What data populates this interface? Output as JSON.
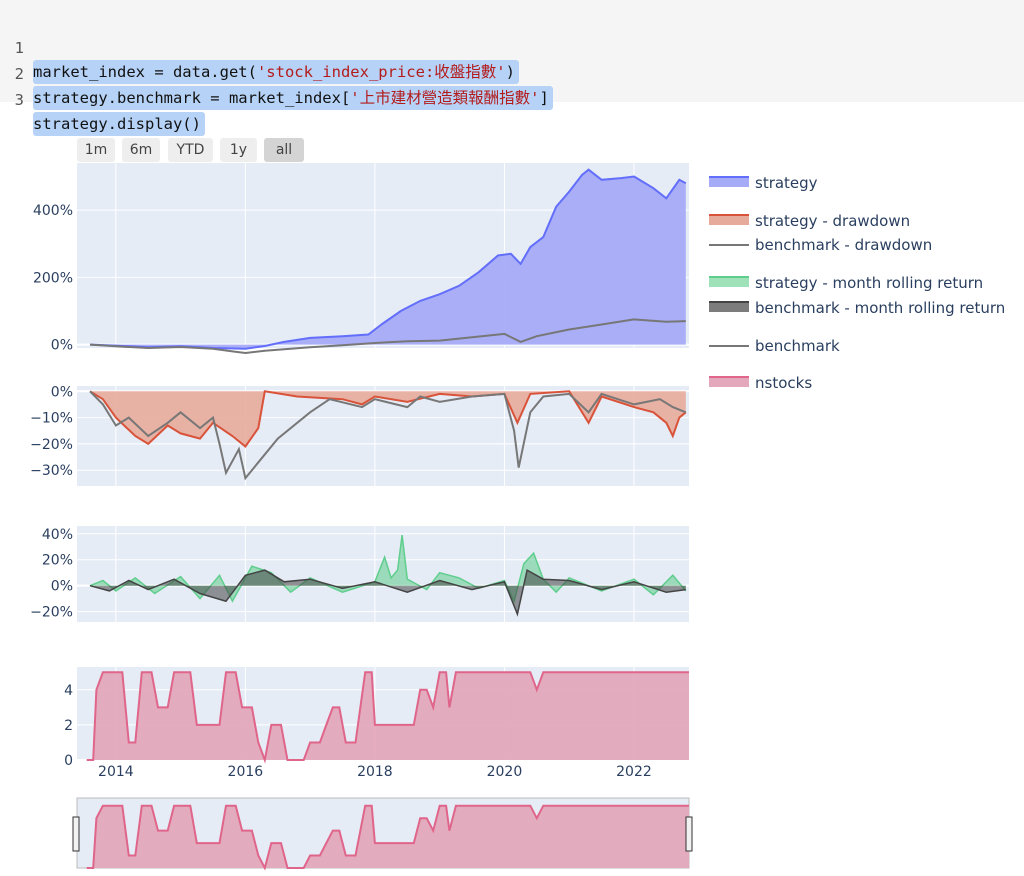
{
  "code": {
    "lines": [
      {
        "num": "1",
        "pre": "market_index = data.get(",
        "str": "'stock_index_price:收盤指數'",
        "post": ")"
      },
      {
        "num": "2",
        "pre": "strategy.benchmark = market_index[",
        "str": "'上市建材營造類報酬指數'",
        "post": "]"
      },
      {
        "num": "3",
        "pre": "strategy.display()",
        "str": "",
        "post": ""
      }
    ]
  },
  "range_selector": {
    "buttons": [
      "1m",
      "6m",
      "YTD",
      "1y",
      "all"
    ],
    "active": "all"
  },
  "colors": {
    "strategy": "#636efa",
    "strategy_fill": "#a5abf7",
    "drawdown": "#d9533a",
    "drawdown_fill": "#e7ab9b",
    "benchmark": "#777777",
    "rolling_strategy": "#5fce8c",
    "rolling_benchmark": "#444444",
    "nstocks": "#e0658a",
    "nstocks_fill": "#e3a8bb",
    "plot_bg": "#e5ecf6"
  },
  "chart_data": [
    {
      "type": "area",
      "panel": "returns",
      "ytick_labels": [
        "400%",
        "200%",
        "0%"
      ],
      "ylim": [
        -10,
        540
      ],
      "x_range": [
        2013.4,
        2022.85
      ],
      "series": [
        {
          "name": "strategy",
          "points": [
            [
              2013.6,
              0
            ],
            [
              2014.0,
              -3
            ],
            [
              2014.5,
              -8
            ],
            [
              2015.0,
              -5
            ],
            [
              2015.5,
              -10
            ],
            [
              2016.0,
              -12
            ],
            [
              2016.3,
              -4
            ],
            [
              2016.6,
              8
            ],
            [
              2017.0,
              20
            ],
            [
              2017.5,
              25
            ],
            [
              2017.9,
              30
            ],
            [
              2018.1,
              60
            ],
            [
              2018.4,
              100
            ],
            [
              2018.7,
              130
            ],
            [
              2019.0,
              150
            ],
            [
              2019.3,
              175
            ],
            [
              2019.6,
              215
            ],
            [
              2019.9,
              265
            ],
            [
              2020.1,
              270
            ],
            [
              2020.25,
              240
            ],
            [
              2020.4,
              290
            ],
            [
              2020.6,
              320
            ],
            [
              2020.8,
              410
            ],
            [
              2021.0,
              455
            ],
            [
              2021.2,
              505
            ],
            [
              2021.3,
              520
            ],
            [
              2021.5,
              490
            ],
            [
              2021.8,
              495
            ],
            [
              2022.0,
              500
            ],
            [
              2022.3,
              465
            ],
            [
              2022.5,
              435
            ],
            [
              2022.7,
              490
            ],
            [
              2022.8,
              480
            ]
          ]
        },
        {
          "name": "benchmark",
          "points": [
            [
              2013.6,
              0
            ],
            [
              2014.0,
              -5
            ],
            [
              2014.5,
              -10
            ],
            [
              2015.0,
              -7
            ],
            [
              2015.5,
              -12
            ],
            [
              2015.8,
              -20
            ],
            [
              2016.0,
              -25
            ],
            [
              2016.3,
              -18
            ],
            [
              2016.7,
              -12
            ],
            [
              2017.0,
              -8
            ],
            [
              2017.5,
              -2
            ],
            [
              2018.0,
              5
            ],
            [
              2018.5,
              10
            ],
            [
              2019.0,
              12
            ],
            [
              2019.5,
              22
            ],
            [
              2020.0,
              32
            ],
            [
              2020.25,
              8
            ],
            [
              2020.5,
              25
            ],
            [
              2021.0,
              45
            ],
            [
              2021.5,
              60
            ],
            [
              2022.0,
              75
            ],
            [
              2022.5,
              68
            ],
            [
              2022.8,
              70
            ]
          ]
        }
      ]
    },
    {
      "type": "area",
      "panel": "drawdown",
      "ytick_labels": [
        "0%",
        "−10%",
        "−20%",
        "−30%"
      ],
      "ylim": [
        -36,
        2
      ],
      "series": [
        {
          "name": "strategy - drawdown",
          "points": [
            [
              2013.6,
              0
            ],
            [
              2013.8,
              -3
            ],
            [
              2014.0,
              -10
            ],
            [
              2014.3,
              -17
            ],
            [
              2014.5,
              -20
            ],
            [
              2014.8,
              -13
            ],
            [
              2015.0,
              -16
            ],
            [
              2015.3,
              -18
            ],
            [
              2015.5,
              -12
            ],
            [
              2015.8,
              -17
            ],
            [
              2016.0,
              -21
            ],
            [
              2016.2,
              -14
            ],
            [
              2016.3,
              0
            ],
            [
              2016.8,
              -2
            ],
            [
              2017.5,
              -3
            ],
            [
              2017.8,
              -5
            ],
            [
              2018.0,
              -2
            ],
            [
              2018.5,
              -4
            ],
            [
              2019.0,
              -1
            ],
            [
              2019.5,
              -2
            ],
            [
              2020.0,
              -1
            ],
            [
              2020.2,
              -12
            ],
            [
              2020.4,
              -1
            ],
            [
              2021.0,
              0
            ],
            [
              2021.3,
              -12
            ],
            [
              2021.5,
              -2
            ],
            [
              2022.0,
              -6
            ],
            [
              2022.3,
              -8
            ],
            [
              2022.5,
              -12
            ],
            [
              2022.6,
              -17
            ],
            [
              2022.7,
              -10
            ],
            [
              2022.8,
              -8
            ]
          ]
        },
        {
          "name": "benchmark - drawdown",
          "points": [
            [
              2013.6,
              0
            ],
            [
              2013.8,
              -5
            ],
            [
              2014.0,
              -13
            ],
            [
              2014.2,
              -10
            ],
            [
              2014.5,
              -17
            ],
            [
              2014.8,
              -12
            ],
            [
              2015.0,
              -8
            ],
            [
              2015.3,
              -14
            ],
            [
              2015.5,
              -10
            ],
            [
              2015.6,
              -20
            ],
            [
              2015.7,
              -31
            ],
            [
              2015.9,
              -22
            ],
            [
              2016.0,
              -33
            ],
            [
              2016.1,
              -30
            ],
            [
              2016.5,
              -18
            ],
            [
              2017.0,
              -8
            ],
            [
              2017.3,
              -3
            ],
            [
              2017.8,
              -6
            ],
            [
              2018.0,
              -3
            ],
            [
              2018.5,
              -6
            ],
            [
              2018.7,
              -2
            ],
            [
              2019.0,
              -4
            ],
            [
              2019.5,
              -2
            ],
            [
              2020.0,
              -1
            ],
            [
              2020.15,
              -15
            ],
            [
              2020.22,
              -29
            ],
            [
              2020.4,
              -8
            ],
            [
              2020.6,
              -2
            ],
            [
              2021.0,
              -1
            ],
            [
              2021.3,
              -8
            ],
            [
              2021.5,
              -1
            ],
            [
              2022.0,
              -5
            ],
            [
              2022.4,
              -3
            ],
            [
              2022.6,
              -6
            ],
            [
              2022.8,
              -8
            ]
          ]
        }
      ]
    },
    {
      "type": "area",
      "panel": "rolling",
      "ytick_labels": [
        "40%",
        "20%",
        "0%",
        "−20%"
      ],
      "ylim": [
        -28,
        46
      ],
      "series": [
        {
          "name": "strategy - month rolling return",
          "points": [
            [
              2013.6,
              0
            ],
            [
              2013.8,
              4
            ],
            [
              2014.0,
              -4
            ],
            [
              2014.3,
              6
            ],
            [
              2014.6,
              -6
            ],
            [
              2015.0,
              7
            ],
            [
              2015.3,
              -10
            ],
            [
              2015.6,
              8
            ],
            [
              2015.8,
              -12
            ],
            [
              2016.1,
              15
            ],
            [
              2016.4,
              10
            ],
            [
              2016.7,
              -5
            ],
            [
              2017.0,
              6
            ],
            [
              2017.5,
              -5
            ],
            [
              2018.0,
              3
            ],
            [
              2018.15,
              22
            ],
            [
              2018.25,
              6
            ],
            [
              2018.35,
              12
            ],
            [
              2018.42,
              39
            ],
            [
              2018.5,
              5
            ],
            [
              2018.8,
              -3
            ],
            [
              2019.0,
              10
            ],
            [
              2019.3,
              6
            ],
            [
              2019.6,
              -2
            ],
            [
              2020.0,
              4
            ],
            [
              2020.15,
              -12
            ],
            [
              2020.3,
              17
            ],
            [
              2020.45,
              25
            ],
            [
              2020.6,
              5
            ],
            [
              2020.8,
              -5
            ],
            [
              2021.0,
              6
            ],
            [
              2021.5,
              -4
            ],
            [
              2022.0,
              5
            ],
            [
              2022.3,
              -7
            ],
            [
              2022.6,
              8
            ],
            [
              2022.8,
              -4
            ]
          ]
        },
        {
          "name": "benchmark - month rolling return",
          "points": [
            [
              2013.6,
              0
            ],
            [
              2013.9,
              -4
            ],
            [
              2014.2,
              4
            ],
            [
              2014.5,
              -3
            ],
            [
              2014.9,
              5
            ],
            [
              2015.3,
              -6
            ],
            [
              2015.7,
              -12
            ],
            [
              2016.0,
              8
            ],
            [
              2016.3,
              12
            ],
            [
              2016.6,
              3
            ],
            [
              2017.0,
              5
            ],
            [
              2017.5,
              -2
            ],
            [
              2018.0,
              3
            ],
            [
              2018.5,
              -5
            ],
            [
              2019.0,
              4
            ],
            [
              2019.5,
              -3
            ],
            [
              2020.0,
              3
            ],
            [
              2020.2,
              -22
            ],
            [
              2020.35,
              12
            ],
            [
              2020.6,
              5
            ],
            [
              2021.0,
              4
            ],
            [
              2021.5,
              -3
            ],
            [
              2022.0,
              3
            ],
            [
              2022.5,
              -5
            ],
            [
              2022.8,
              -3
            ]
          ]
        }
      ]
    },
    {
      "type": "area",
      "panel": "nstocks",
      "ytick_labels": [
        "4",
        "2",
        "0"
      ],
      "ylim": [
        0,
        5.3
      ],
      "xtick_labels": [
        "2014",
        "2016",
        "2018",
        "2020",
        "2022"
      ],
      "series": [
        {
          "name": "nstocks",
          "points": [
            [
              2013.55,
              0
            ],
            [
              2013.65,
              0
            ],
            [
              2013.7,
              4
            ],
            [
              2013.8,
              5
            ],
            [
              2014.1,
              5
            ],
            [
              2014.2,
              1
            ],
            [
              2014.3,
              1
            ],
            [
              2014.4,
              5
            ],
            [
              2014.55,
              5
            ],
            [
              2014.65,
              3
            ],
            [
              2014.8,
              3
            ],
            [
              2014.9,
              5
            ],
            [
              2015.15,
              5
            ],
            [
              2015.25,
              2
            ],
            [
              2015.6,
              2
            ],
            [
              2015.7,
              5
            ],
            [
              2015.85,
              5
            ],
            [
              2015.95,
              3
            ],
            [
              2016.1,
              3
            ],
            [
              2016.2,
              1
            ],
            [
              2016.3,
              0
            ],
            [
              2016.4,
              2
            ],
            [
              2016.55,
              2
            ],
            [
              2016.65,
              0
            ],
            [
              2016.9,
              0
            ],
            [
              2017.0,
              1
            ],
            [
              2017.15,
              1
            ],
            [
              2017.25,
              2
            ],
            [
              2017.35,
              3
            ],
            [
              2017.45,
              3
            ],
            [
              2017.55,
              1
            ],
            [
              2017.7,
              1
            ],
            [
              2017.85,
              5
            ],
            [
              2017.95,
              5
            ],
            [
              2018.0,
              2
            ],
            [
              2018.6,
              2
            ],
            [
              2018.7,
              4
            ],
            [
              2018.8,
              4
            ],
            [
              2018.9,
              3
            ],
            [
              2019.0,
              5
            ],
            [
              2019.1,
              5
            ],
            [
              2019.15,
              3
            ],
            [
              2019.25,
              5
            ],
            [
              2019.3,
              5
            ],
            [
              2020.4,
              5
            ],
            [
              2020.5,
              4
            ],
            [
              2020.6,
              5
            ],
            [
              2022.85,
              5
            ]
          ]
        }
      ]
    }
  ],
  "legend": {
    "items": [
      {
        "label": "strategy",
        "key": "strategy"
      },
      {
        "label": "strategy - drawdown",
        "key": "drawdown"
      },
      {
        "label": "benchmark - drawdown",
        "key": "bench_dd"
      },
      {
        "label": "strategy - month rolling return",
        "key": "roll_s"
      },
      {
        "label": "benchmark - month rolling return",
        "key": "roll_b"
      },
      {
        "label": "benchmark",
        "key": "bench"
      },
      {
        "label": "nstocks",
        "key": "nstocks"
      }
    ]
  }
}
